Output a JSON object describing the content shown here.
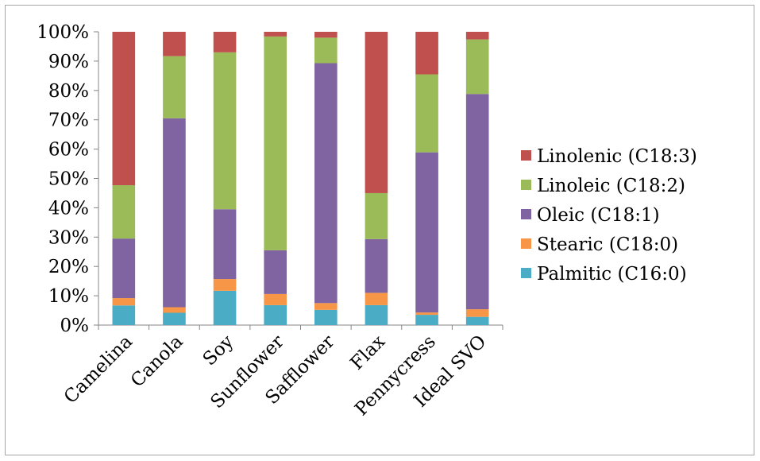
{
  "chart_data": {
    "type": "bar",
    "stacked": true,
    "percent_stacked": true,
    "categories": [
      "Camelina",
      "Canola",
      "Soy",
      "Sunflower",
      "Safflower",
      "Flax",
      "Pennycress",
      "Ideal SVO"
    ],
    "series": [
      {
        "name": "Palmitic (C16:0)",
        "color": "#4bacc6",
        "values": [
          6.7,
          4.2,
          11.7,
          6.8,
          5.2,
          6.8,
          3.5,
          2.8
        ]
      },
      {
        "name": "Stearic (C18:0)",
        "color": "#f79646",
        "values": [
          2.5,
          1.9,
          4.0,
          3.8,
          2.3,
          4.2,
          0.8,
          2.6
        ]
      },
      {
        "name": "Oleic (C18:1)",
        "color": "#8064a2",
        "values": [
          20.3,
          64.4,
          23.8,
          14.9,
          81.8,
          18.3,
          54.6,
          73.4
        ]
      },
      {
        "name": "Linoleic (C18:2)",
        "color": "#9bbb59",
        "values": [
          18.2,
          21.2,
          53.5,
          72.9,
          8.7,
          15.7,
          26.6,
          18.6
        ]
      },
      {
        "name": "Linolenic (C18:3)",
        "color": "#c0504d",
        "values": [
          52.3,
          8.3,
          7.0,
          1.6,
          2.0,
          55.0,
          14.5,
          2.6
        ]
      }
    ],
    "yticks": [
      "0%",
      "10%",
      "20%",
      "30%",
      "40%",
      "50%",
      "60%",
      "70%",
      "80%",
      "90%",
      "100%"
    ],
    "ylim": [
      0,
      100
    ],
    "legend_position": "right",
    "legend_order": [
      "Linolenic (C18:3)",
      "Linoleic (C18:2)",
      "Oleic (C18:1)",
      "Stearic (C18:0)",
      "Palmitic (C16:0)"
    ],
    "grid": false
  }
}
